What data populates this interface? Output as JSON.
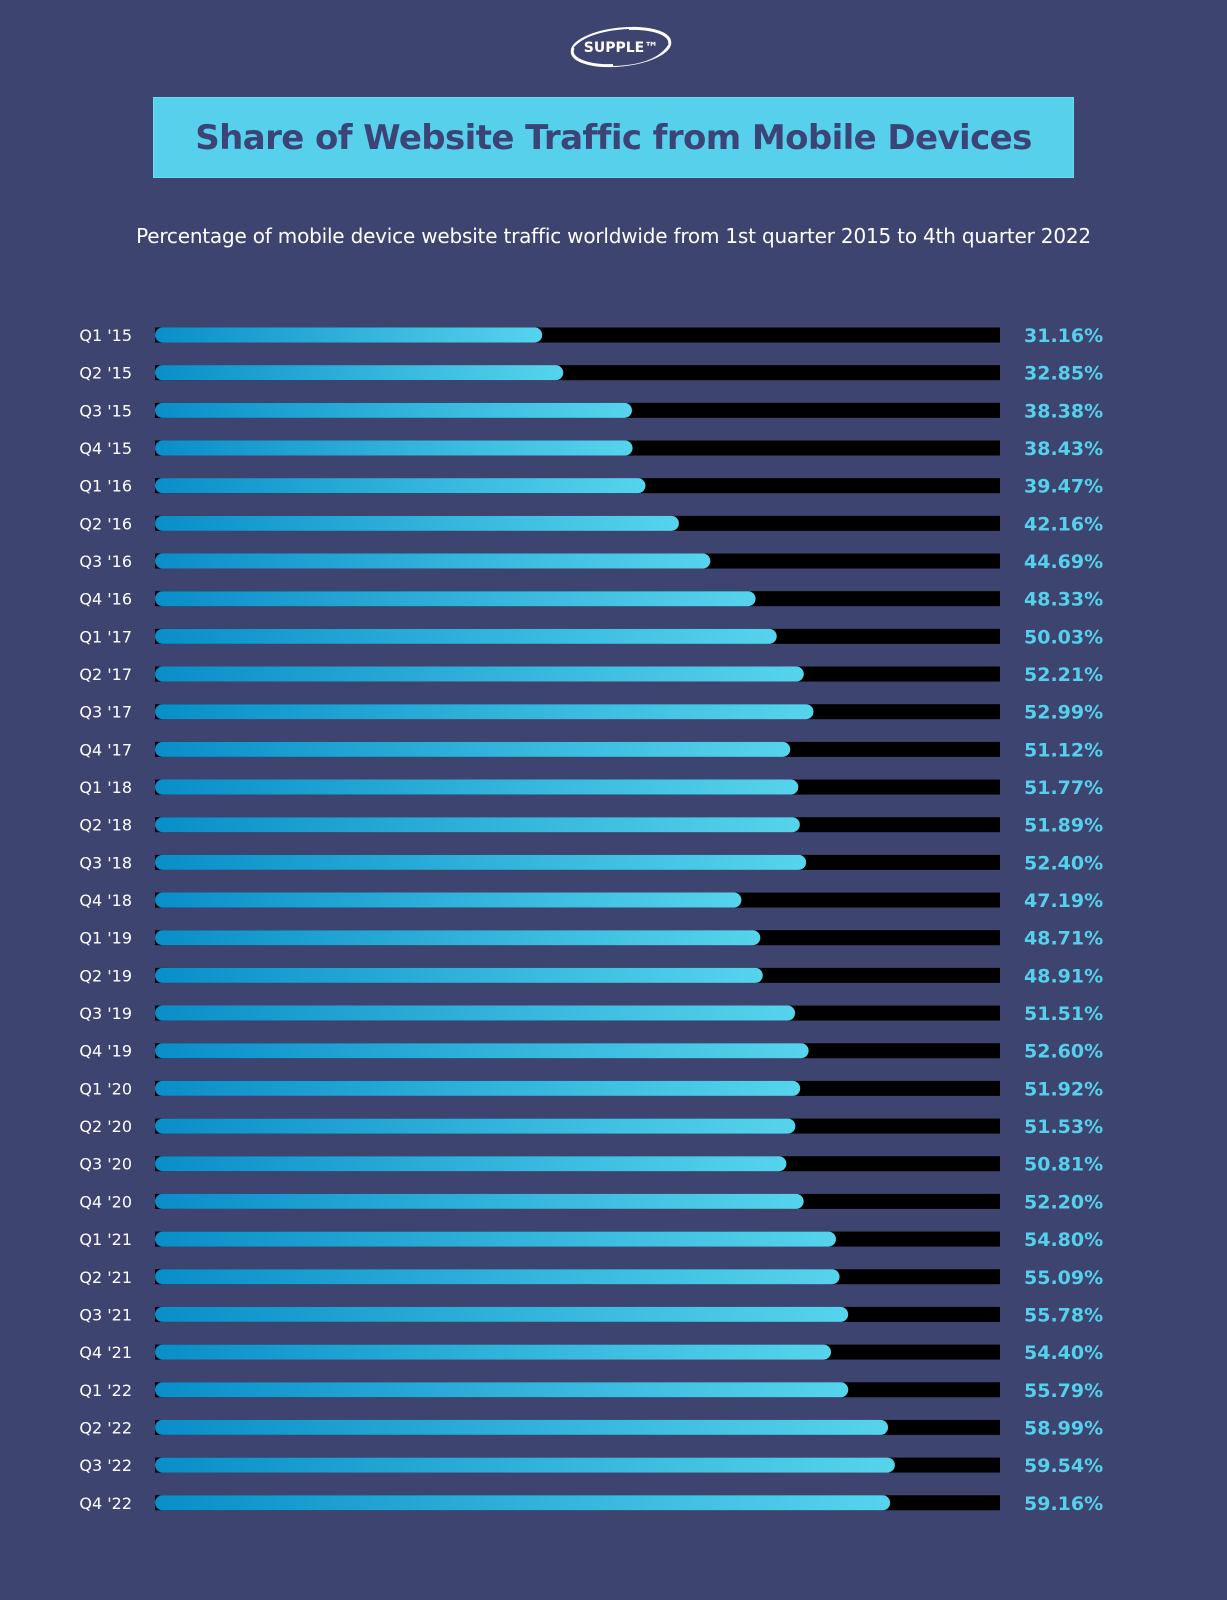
{
  "logo": {
    "text": "SUPPLE™"
  },
  "header": {
    "title": "Share of Website Traffic from Mobile Devices",
    "subtitle": "Percentage of mobile device website traffic worldwide from 1st quarter 2015 to 4th quarter 2022"
  },
  "colors": {
    "background": "#3d4470",
    "banner": "#56d0eb",
    "title_text": "#3b4377",
    "bar_track": "#000000",
    "bar_fill_start": "#0a8ec8",
    "bar_fill_end": "#56d4ec",
    "value_text": "#56d0eb",
    "label_text": "#ffffff"
  },
  "chart_data": {
    "type": "bar",
    "orientation": "horizontal",
    "title": "Share of Website Traffic from Mobile Devices",
    "subtitle": "Percentage of mobile device website traffic worldwide from 1st quarter 2015 to 4th quarter 2022",
    "track_max": 68,
    "categories": [
      "Q1 '15",
      "Q2 '15",
      "Q3 '15",
      "Q4 '15",
      "Q1 '16",
      "Q2 '16",
      "Q3 '16",
      "Q4 '16",
      "Q1 '17",
      "Q2 '17",
      "Q3 '17",
      "Q4 '17",
      "Q1 '18",
      "Q2 '18",
      "Q3 '18",
      "Q4 '18",
      "Q1 '19",
      "Q2 '19",
      "Q3 '19",
      "Q4 '19",
      "Q1 '20",
      "Q2 '20",
      "Q3 '20",
      "Q4 '20",
      "Q1 '21",
      "Q2 '21",
      "Q3 '21",
      "Q4 '21",
      "Q1 '22",
      "Q2 '22",
      "Q3 '22",
      "Q4 '22"
    ],
    "values": [
      31.16,
      32.85,
      38.38,
      38.43,
      39.47,
      42.16,
      44.69,
      48.33,
      50.03,
      52.21,
      52.99,
      51.12,
      51.77,
      51.89,
      52.4,
      47.19,
      48.71,
      48.91,
      51.51,
      52.6,
      51.92,
      51.53,
      50.81,
      52.2,
      54.8,
      55.09,
      55.78,
      54.4,
      55.79,
      58.99,
      59.54,
      59.16
    ],
    "value_labels": [
      "31.16%",
      "32.85%",
      "38.38%",
      "38.43%",
      "39.47%",
      "42.16%",
      "44.69%",
      "48.33%",
      "50.03%",
      "52.21%",
      "52.99%",
      "51.12%",
      "51.77%",
      "51.89%",
      "52.40%",
      "47.19%",
      "48.71%",
      "48.91%",
      "51.51%",
      "52.60%",
      "51.92%",
      "51.53%",
      "50.81%",
      "52.20%",
      "54.80%",
      "55.09%",
      "55.78%",
      "54.40%",
      "55.79%",
      "58.99%",
      "59.54%",
      "59.16%"
    ],
    "grid": false,
    "legend": "none"
  }
}
